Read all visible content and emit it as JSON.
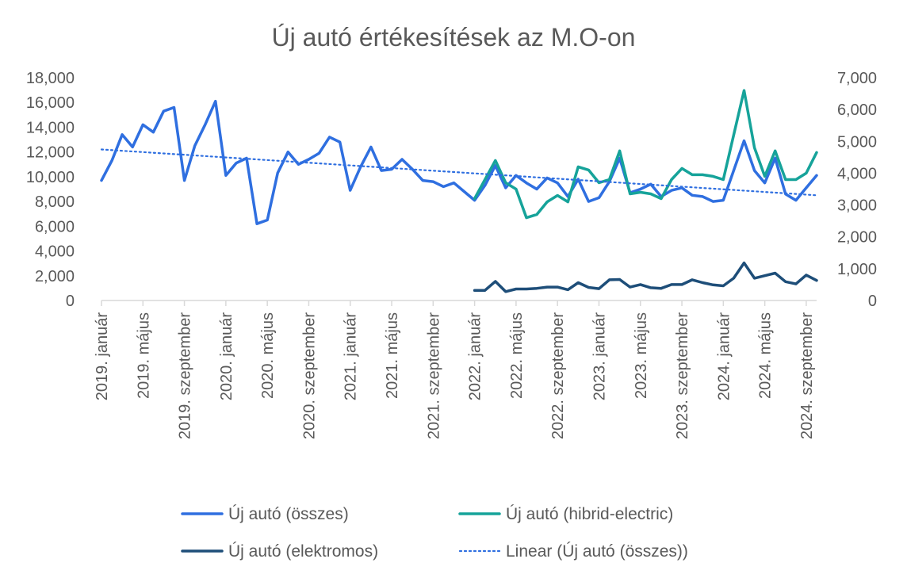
{
  "chart_data": {
    "type": "line",
    "title": "Új autó értékesítések az M.O-on",
    "x_tick_labels": [
      "2019. január",
      "2019. május",
      "2019. szeptember",
      "2020. január",
      "2020. május",
      "2020. szeptember",
      "2021. január",
      "2021. május",
      "2021. szeptember",
      "2022. január",
      "2022. május",
      "2022. szeptember",
      "2023. január",
      "2023. május",
      "2023. szeptember",
      "2024. január",
      "2024. május",
      "2024. szeptember"
    ],
    "x_tick_months": [
      0,
      4,
      8,
      12,
      16,
      20,
      24,
      28,
      32,
      36,
      40,
      44,
      48,
      52,
      56,
      60,
      64,
      68
    ],
    "x_range_months": [
      0,
      69
    ],
    "y_left": {
      "min": 0,
      "max": 18000,
      "step": 2000,
      "tick_labels": [
        "0",
        "2,000",
        "4,000",
        "6,000",
        "8,000",
        "10,000",
        "12,000",
        "14,000",
        "16,000",
        "18,000"
      ]
    },
    "y_right": {
      "min": 0,
      "max": 7000,
      "step": 1000,
      "tick_labels": [
        "0",
        "1,000",
        "2,000",
        "3,000",
        "4,000",
        "5,000",
        "6,000",
        "7,000"
      ]
    },
    "grid": false,
    "legend_position": "bottom",
    "series": [
      {
        "name": "Új autó (összes)",
        "axis": "left",
        "color": "#2f6fe0",
        "style": "solid",
        "start_month": 0,
        "values": [
          9700,
          11300,
          13400,
          12400,
          14200,
          13600,
          15300,
          15600,
          9700,
          12500,
          14200,
          16100,
          10100,
          11100,
          11500,
          6200,
          6500,
          10300,
          12000,
          11000,
          11400,
          11900,
          13200,
          12800,
          8900,
          10800,
          12400,
          10500,
          10600,
          11400,
          10600,
          9700,
          9600,
          9200,
          9500,
          8800,
          8100,
          9300,
          10900,
          9100,
          10100,
          9500,
          9000,
          9900,
          9500,
          8400,
          9800,
          8000,
          8300,
          9600,
          11500,
          8700,
          9000,
          9400,
          8400,
          8900,
          9100,
          8500,
          8400,
          8000,
          8100,
          10500,
          12900,
          10500,
          9500,
          11500,
          8600,
          8100,
          9100,
          10100
        ]
      },
      {
        "name": "Új autó (hibrid-electric)",
        "axis": "right",
        "color": "#16a39a",
        "style": "solid",
        "start_month": 36,
        "values": [
          3200,
          3800,
          4400,
          3700,
          3500,
          2600,
          2700,
          3100,
          3300,
          3100,
          4200,
          4100,
          3700,
          3800,
          4700,
          3350,
          3400,
          3350,
          3200,
          3800,
          4150,
          3950,
          3950,
          3900,
          3800,
          5200,
          6600,
          4800,
          3900,
          4700,
          3800,
          3800,
          4000,
          4650
        ]
      },
      {
        "name": "Új autó (elektromos)",
        "axis": "right",
        "color": "#1e4e79",
        "style": "solid",
        "start_month": 36,
        "values": [
          320,
          320,
          600,
          280,
          360,
          360,
          380,
          420,
          420,
          340,
          560,
          410,
          370,
          650,
          660,
          420,
          500,
          400,
          380,
          500,
          500,
          650,
          560,
          490,
          460,
          700,
          1180,
          700,
          780,
          860,
          590,
          520,
          800,
          630
        ]
      },
      {
        "name": "Linear (Új autó (összes))",
        "axis": "left",
        "color": "#2f6fe0",
        "style": "dotted",
        "trend": [
          12200,
          8500
        ]
      }
    ]
  }
}
